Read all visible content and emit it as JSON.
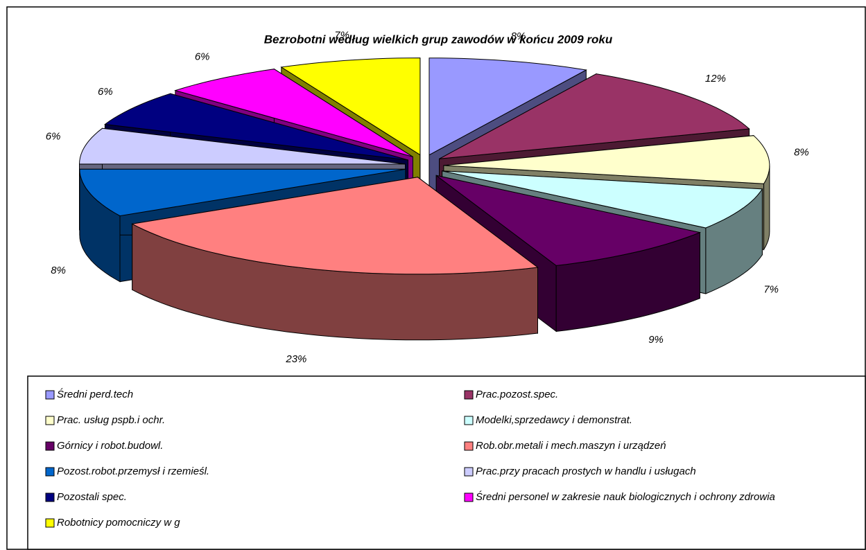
{
  "chart_data": {
    "type": "pie3d",
    "title": "Bezrobotni według wielkich grup zawodów w końcu 2009 roku",
    "categories": [
      "Średni perd.tech",
      "Prac.pozost.spec.",
      "Prac. usług pspb.i ochr.",
      "Modelki,sprzedawcy i demonstrat.",
      "Górnicy i robot.budowl.",
      "Rob.obr.metali i mech.maszyn i urządzeń",
      "Pozost.robot.przemysł i rzemieśl.",
      "Prac.przy pracach prostych w handlu i usługach",
      "Pozostali spec.",
      "Średni personel w zakresie nauk biologicznych i ochrony zdrowia",
      "Robotnicy pomocniczy w g"
    ],
    "values": [
      8,
      12,
      8,
      7,
      9,
      23,
      8,
      6,
      6,
      6,
      7
    ],
    "value_labels": [
      "8%",
      "12%",
      "8%",
      "7%",
      "9%",
      "23%",
      "8%",
      "6%",
      "6%",
      "6%",
      "7%"
    ],
    "colors": [
      "#9999ff",
      "#993366",
      "#ffffcc",
      "#ccffff",
      "#660066",
      "#ff8080",
      "#0066cc",
      "#ccccff",
      "#000080",
      "#ff00ff",
      "#ffff00"
    ],
    "legend": "bottom"
  }
}
